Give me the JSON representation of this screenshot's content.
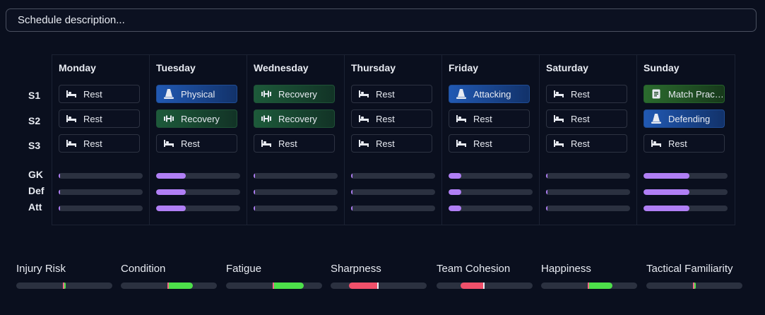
{
  "schedule": {
    "placeholder": "Schedule description..."
  },
  "row_labels": {
    "s1": "S1",
    "s2": "S2",
    "s3": "S3",
    "gk": "GK",
    "def": "Def",
    "att": "Att"
  },
  "days": [
    {
      "name": "Monday",
      "sessions": [
        {
          "label": "Rest",
          "type": "rest",
          "icon": "bed-icon"
        },
        {
          "label": "Rest",
          "type": "rest",
          "icon": "bed-icon"
        },
        {
          "label": "Rest",
          "type": "rest",
          "icon": "bed-icon"
        }
      ],
      "load": {
        "gk": 0.02,
        "def": 0.02,
        "att": 0.02
      }
    },
    {
      "name": "Tuesday",
      "sessions": [
        {
          "label": "Physical",
          "type": "physical",
          "icon": "cone-icon"
        },
        {
          "label": "Recovery",
          "type": "recovery",
          "icon": "dumbbell-icon"
        },
        {
          "label": "Rest",
          "type": "rest",
          "icon": "bed-icon"
        }
      ],
      "load": {
        "gk": 0.35,
        "def": 0.35,
        "att": 0.35
      }
    },
    {
      "name": "Wednesday",
      "sessions": [
        {
          "label": "Recovery",
          "type": "recovery",
          "icon": "dumbbell-icon"
        },
        {
          "label": "Recovery",
          "type": "recovery",
          "icon": "dumbbell-icon"
        },
        {
          "label": "Rest",
          "type": "rest",
          "icon": "bed-icon"
        }
      ],
      "load": {
        "gk": 0.02,
        "def": 0.02,
        "att": 0.02
      }
    },
    {
      "name": "Thursday",
      "sessions": [
        {
          "label": "Rest",
          "type": "rest",
          "icon": "bed-icon"
        },
        {
          "label": "Rest",
          "type": "rest",
          "icon": "bed-icon"
        },
        {
          "label": "Rest",
          "type": "rest",
          "icon": "bed-icon"
        }
      ],
      "load": {
        "gk": 0.02,
        "def": 0.02,
        "att": 0.02
      }
    },
    {
      "name": "Friday",
      "sessions": [
        {
          "label": "Attacking",
          "type": "attacking",
          "icon": "cone-icon"
        },
        {
          "label": "Rest",
          "type": "rest",
          "icon": "bed-icon"
        },
        {
          "label": "Rest",
          "type": "rest",
          "icon": "bed-icon"
        }
      ],
      "load": {
        "gk": 0.15,
        "def": 0.15,
        "att": 0.15
      }
    },
    {
      "name": "Saturday",
      "sessions": [
        {
          "label": "Rest",
          "type": "rest",
          "icon": "bed-icon"
        },
        {
          "label": "Rest",
          "type": "rest",
          "icon": "bed-icon"
        },
        {
          "label": "Rest",
          "type": "rest",
          "icon": "bed-icon"
        }
      ],
      "load": {
        "gk": 0.02,
        "def": 0.02,
        "att": 0.02
      }
    },
    {
      "name": "Sunday",
      "sessions": [
        {
          "label": "Match Practi...",
          "type": "match",
          "icon": "document-icon"
        },
        {
          "label": "Defending",
          "type": "defending",
          "icon": "cone-icon"
        },
        {
          "label": "Rest",
          "type": "rest",
          "icon": "bed-icon"
        }
      ],
      "load": {
        "gk": 0.55,
        "def": 0.55,
        "att": 0.55
      }
    }
  ],
  "metrics": [
    {
      "label": "Injury Risk",
      "direction": "positive",
      "value": 0.03
    },
    {
      "label": "Condition",
      "direction": "positive",
      "value": 0.42
    },
    {
      "label": "Fatigue",
      "direction": "positive",
      "value": 0.52
    },
    {
      "label": "Sharpness",
      "direction": "negative",
      "value": 0.52
    },
    {
      "label": "Team Cohesion",
      "direction": "negative",
      "value": 0.42
    },
    {
      "label": "Happiness",
      "direction": "positive",
      "value": 0.4
    },
    {
      "label": "Tactical Familiarity",
      "direction": "positive",
      "value": 0.03
    }
  ],
  "colors": {
    "background": "#0a0f1e",
    "load_bar": "#b07ff5",
    "metric_positive": "#4de04a",
    "metric_negative": "#f0506a",
    "session_blue": "#2159b3",
    "session_green": "#1d5a3a"
  }
}
